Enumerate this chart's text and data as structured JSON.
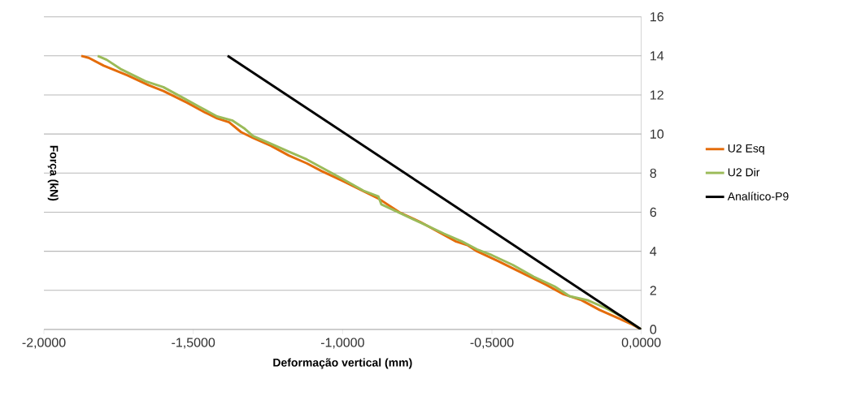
{
  "chart_data": {
    "type": "line",
    "xlabel": "Deformação vertical (mm)",
    "ylabel": "Força (kN)",
    "xlim": [
      -2,
      0
    ],
    "ylim": [
      0,
      16
    ],
    "xticks": [
      {
        "value": -2,
        "label": "-2,0000"
      },
      {
        "value": -1.5,
        "label": "-1,5000"
      },
      {
        "value": -1,
        "label": "-1,0000"
      },
      {
        "value": -0.5,
        "label": "-0,5000"
      },
      {
        "value": 0,
        "label": "0,0000"
      }
    ],
    "yticks": [
      0,
      2,
      4,
      6,
      8,
      10,
      12,
      14,
      16
    ],
    "grid": "y",
    "legend": "right",
    "marker": "none",
    "line_style": "solid",
    "series": [
      {
        "name": "U2 Esq",
        "color": "#e46c0a",
        "x": [
          -1.875,
          -1.85,
          -1.8,
          -1.72,
          -1.65,
          -1.6,
          -1.52,
          -1.46,
          -1.42,
          -1.38,
          -1.34,
          -1.3,
          -1.24,
          -1.18,
          -1.12,
          -1.07,
          -1.0,
          -0.92,
          -0.88,
          -0.81,
          -0.74,
          -0.68,
          -0.62,
          -0.58,
          -0.55,
          -0.48,
          -0.4,
          -0.32,
          -0.26,
          -0.2,
          -0.14,
          -0.08,
          -0.03,
          0
        ],
        "values": [
          14,
          13.9,
          13.5,
          13.0,
          12.5,
          12.2,
          11.6,
          11.1,
          10.8,
          10.6,
          10.1,
          9.8,
          9.4,
          8.9,
          8.5,
          8.1,
          7.6,
          7.0,
          6.7,
          6.0,
          5.5,
          5.0,
          4.5,
          4.3,
          4.0,
          3.5,
          2.9,
          2.3,
          1.8,
          1.5,
          1.0,
          0.6,
          0.25,
          0
        ]
      },
      {
        "name": "U2 Dir",
        "color": "#9bbb59",
        "x": [
          -1.82,
          -1.79,
          -1.74,
          -1.66,
          -1.6,
          -1.54,
          -1.48,
          -1.42,
          -1.37,
          -1.33,
          -1.3,
          -1.24,
          -1.18,
          -1.12,
          -1.06,
          -1.0,
          -0.93,
          -0.88,
          -0.87,
          -0.8,
          -0.73,
          -0.66,
          -0.6,
          -0.55,
          -0.5,
          -0.43,
          -0.36,
          -0.29,
          -0.24,
          -0.18,
          -0.12,
          -0.07,
          -0.03,
          0
        ],
        "values": [
          14,
          13.8,
          13.3,
          12.7,
          12.4,
          11.9,
          11.4,
          10.9,
          10.7,
          10.3,
          9.9,
          9.5,
          9.1,
          8.7,
          8.2,
          7.7,
          7.1,
          6.8,
          6.4,
          5.9,
          5.4,
          4.9,
          4.5,
          4.1,
          3.8,
          3.3,
          2.7,
          2.2,
          1.7,
          1.5,
          1.1,
          0.7,
          0.3,
          0
        ]
      },
      {
        "name": "Analítico-P9",
        "color": "#000000",
        "x": [
          -1.385,
          0
        ],
        "values": [
          14,
          0
        ]
      }
    ]
  }
}
